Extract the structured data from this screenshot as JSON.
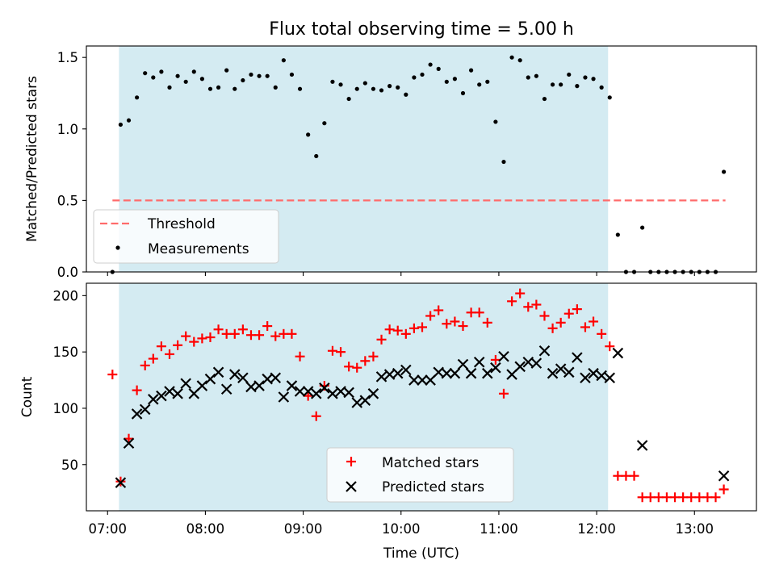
{
  "chart_data": [
    {
      "type": "scatter",
      "title": "Flux total observing time = 5.00 h",
      "ylabel": "Matched/Predicted stars",
      "xlim": [
        "06:47",
        "13:38"
      ],
      "ylim": [
        0,
        1.58
      ],
      "yticks": [
        0,
        0.5,
        1.0,
        1.5
      ],
      "ytick_labels": [
        "0.0",
        "0.5",
        "1.0",
        "1.5"
      ],
      "shaded_span": {
        "start": "07:07",
        "end": "12:07",
        "color": "#add8e6"
      },
      "threshold": {
        "label": "Threshold",
        "value": 0.5,
        "start": "07:03",
        "end": "13:19",
        "color": "#ff6b6b",
        "style": "dashed"
      },
      "legend_position": "lower left",
      "series": [
        {
          "name": "Measurements",
          "marker": "dot",
          "color": "#000000",
          "points": [
            [
              "07:03",
              0.0
            ],
            [
              "07:08",
              1.03
            ],
            [
              "07:13",
              1.06
            ],
            [
              "07:18",
              1.22
            ],
            [
              "07:23",
              1.39
            ],
            [
              "07:28",
              1.36
            ],
            [
              "07:33",
              1.4
            ],
            [
              "07:38",
              1.29
            ],
            [
              "07:43",
              1.37
            ],
            [
              "07:48",
              1.33
            ],
            [
              "07:53",
              1.4
            ],
            [
              "07:58",
              1.35
            ],
            [
              "08:03",
              1.28
            ],
            [
              "08:08",
              1.29
            ],
            [
              "08:13",
              1.41
            ],
            [
              "08:18",
              1.28
            ],
            [
              "08:23",
              1.34
            ],
            [
              "08:28",
              1.38
            ],
            [
              "08:33",
              1.37
            ],
            [
              "08:38",
              1.37
            ],
            [
              "08:43",
              1.29
            ],
            [
              "08:48",
              1.48
            ],
            [
              "08:53",
              1.38
            ],
            [
              "08:58",
              1.28
            ],
            [
              "09:03",
              0.96
            ],
            [
              "09:08",
              0.81
            ],
            [
              "09:13",
              1.04
            ],
            [
              "09:18",
              1.33
            ],
            [
              "09:23",
              1.31
            ],
            [
              "09:28",
              1.21
            ],
            [
              "09:33",
              1.28
            ],
            [
              "09:38",
              1.32
            ],
            [
              "09:43",
              1.28
            ],
            [
              "09:48",
              1.27
            ],
            [
              "09:53",
              1.3
            ],
            [
              "09:58",
              1.29
            ],
            [
              "10:03",
              1.24
            ],
            [
              "10:08",
              1.36
            ],
            [
              "10:13",
              1.38
            ],
            [
              "10:18",
              1.45
            ],
            [
              "10:23",
              1.42
            ],
            [
              "10:28",
              1.33
            ],
            [
              "10:33",
              1.35
            ],
            [
              "10:38",
              1.25
            ],
            [
              "10:43",
              1.41
            ],
            [
              "10:48",
              1.31
            ],
            [
              "10:53",
              1.33
            ],
            [
              "10:58",
              1.05
            ],
            [
              "11:03",
              0.77
            ],
            [
              "11:08",
              1.5
            ],
            [
              "11:13",
              1.48
            ],
            [
              "11:18",
              1.36
            ],
            [
              "11:23",
              1.37
            ],
            [
              "11:28",
              1.21
            ],
            [
              "11:33",
              1.31
            ],
            [
              "11:38",
              1.31
            ],
            [
              "11:43",
              1.38
            ],
            [
              "11:48",
              1.3
            ],
            [
              "11:53",
              1.36
            ],
            [
              "11:58",
              1.35
            ],
            [
              "12:03",
              1.29
            ],
            [
              "12:08",
              1.22
            ],
            [
              "12:13",
              0.26
            ],
            [
              "12:18",
              0.0
            ],
            [
              "12:23",
              0.0
            ],
            [
              "12:28",
              0.31
            ],
            [
              "12:33",
              0.0
            ],
            [
              "12:38",
              0.0
            ],
            [
              "12:43",
              0.0
            ],
            [
              "12:48",
              0.0
            ],
            [
              "12:53",
              0.0
            ],
            [
              "12:58",
              0.0
            ],
            [
              "13:03",
              0.0
            ],
            [
              "13:08",
              0.0
            ],
            [
              "13:13",
              0.0
            ],
            [
              "13:18",
              0.7
            ]
          ]
        }
      ]
    },
    {
      "type": "scatter",
      "xlabel": "Time (UTC)",
      "ylabel": "Count",
      "xlim": [
        "06:47",
        "13:38"
      ],
      "ylim": [
        9,
        211
      ],
      "yticks": [
        50,
        100,
        150,
        200
      ],
      "xtick_labels": [
        "07:00",
        "08:00",
        "09:00",
        "10:00",
        "11:00",
        "12:00",
        "13:00"
      ],
      "shaded_span": {
        "start": "07:07",
        "end": "12:07",
        "color": "#add8e6"
      },
      "legend_position": "lower center",
      "series": [
        {
          "name": "Matched stars",
          "marker": "plus",
          "color": "#ff0000",
          "points": [
            [
              "07:03",
              130
            ],
            [
              "07:08",
              35
            ],
            [
              "07:13",
              73
            ],
            [
              "07:18",
              116
            ],
            [
              "07:23",
              138
            ],
            [
              "07:28",
              144
            ],
            [
              "07:33",
              155
            ],
            [
              "07:38",
              148
            ],
            [
              "07:43",
              156
            ],
            [
              "07:48",
              164
            ],
            [
              "07:53",
              159
            ],
            [
              "07:58",
              162
            ],
            [
              "08:03",
              163
            ],
            [
              "08:08",
              170
            ],
            [
              "08:13",
              166
            ],
            [
              "08:18",
              166
            ],
            [
              "08:23",
              170
            ],
            [
              "08:28",
              165
            ],
            [
              "08:33",
              165
            ],
            [
              "08:38",
              173
            ],
            [
              "08:43",
              164
            ],
            [
              "08:48",
              166
            ],
            [
              "08:53",
              166
            ],
            [
              "08:58",
              146
            ],
            [
              "09:03",
              111
            ],
            [
              "09:08",
              93
            ],
            [
              "09:13",
              120
            ],
            [
              "09:18",
              151
            ],
            [
              "09:23",
              150
            ],
            [
              "09:28",
              137
            ],
            [
              "09:33",
              136
            ],
            [
              "09:38",
              142
            ],
            [
              "09:43",
              146
            ],
            [
              "09:48",
              161
            ],
            [
              "09:53",
              170
            ],
            [
              "09:58",
              169
            ],
            [
              "10:03",
              166
            ],
            [
              "10:08",
              171
            ],
            [
              "10:13",
              172
            ],
            [
              "10:18",
              182
            ],
            [
              "10:23",
              187
            ],
            [
              "10:28",
              175
            ],
            [
              "10:33",
              177
            ],
            [
              "10:38",
              173
            ],
            [
              "10:43",
              185
            ],
            [
              "10:48",
              185
            ],
            [
              "10:53",
              176
            ],
            [
              "10:58",
              143
            ],
            [
              "11:03",
              113
            ],
            [
              "11:08",
              195
            ],
            [
              "11:13",
              202
            ],
            [
              "11:18",
              190
            ],
            [
              "11:23",
              192
            ],
            [
              "11:28",
              182
            ],
            [
              "11:33",
              171
            ],
            [
              "11:38",
              176
            ],
            [
              "11:43",
              184
            ],
            [
              "11:48",
              188
            ],
            [
              "11:53",
              172
            ],
            [
              "11:58",
              177
            ],
            [
              "12:03",
              166
            ],
            [
              "12:08",
              155
            ],
            [
              "12:13",
              40
            ],
            [
              "12:18",
              40
            ],
            [
              "12:23",
              40
            ],
            [
              "12:28",
              21
            ],
            [
              "12:33",
              21
            ],
            [
              "12:38",
              21
            ],
            [
              "12:43",
              21
            ],
            [
              "12:48",
              21
            ],
            [
              "12:53",
              21
            ],
            [
              "12:58",
              21
            ],
            [
              "13:03",
              21
            ],
            [
              "13:08",
              21
            ],
            [
              "13:13",
              21
            ],
            [
              "13:18",
              28
            ]
          ]
        },
        {
          "name": "Predicted stars",
          "marker": "x",
          "color": "#000000",
          "points": [
            [
              "07:08",
              34
            ],
            [
              "07:13",
              69
            ],
            [
              "07:18",
              95
            ],
            [
              "07:23",
              99
            ],
            [
              "07:28",
              108
            ],
            [
              "07:33",
              111
            ],
            [
              "07:38",
              115
            ],
            [
              "07:43",
              113
            ],
            [
              "07:48",
              122
            ],
            [
              "07:53",
              113
            ],
            [
              "07:58",
              120
            ],
            [
              "08:03",
              126
            ],
            [
              "08:08",
              132
            ],
            [
              "08:13",
              117
            ],
            [
              "08:18",
              130
            ],
            [
              "08:23",
              127
            ],
            [
              "08:28",
              119
            ],
            [
              "08:33",
              120
            ],
            [
              "08:38",
              126
            ],
            [
              "08:43",
              127
            ],
            [
              "08:48",
              110
            ],
            [
              "08:53",
              120
            ],
            [
              "08:58",
              115
            ],
            [
              "09:03",
              115
            ],
            [
              "09:08",
              113
            ],
            [
              "09:13",
              118
            ],
            [
              "09:18",
              113
            ],
            [
              "09:23",
              115
            ],
            [
              "09:28",
              114
            ],
            [
              "09:33",
              105
            ],
            [
              "09:38",
              107
            ],
            [
              "09:43",
              113
            ],
            [
              "09:48",
              128
            ],
            [
              "09:53",
              130
            ],
            [
              "09:58",
              131
            ],
            [
              "10:03",
              134
            ],
            [
              "10:08",
              125
            ],
            [
              "10:13",
              125
            ],
            [
              "10:18",
              125
            ],
            [
              "10:23",
              132
            ],
            [
              "10:28",
              131
            ],
            [
              "10:33",
              131
            ],
            [
              "10:38",
              139
            ],
            [
              "10:43",
              131
            ],
            [
              "10:48",
              141
            ],
            [
              "10:53",
              131
            ],
            [
              "10:58",
              136
            ],
            [
              "11:03",
              146
            ],
            [
              "11:08",
              130
            ],
            [
              "11:13",
              137
            ],
            [
              "11:18",
              141
            ],
            [
              "11:23",
              140
            ],
            [
              "11:28",
              151
            ],
            [
              "11:33",
              131
            ],
            [
              "11:38",
              135
            ],
            [
              "11:43",
              132
            ],
            [
              "11:48",
              145
            ],
            [
              "11:53",
              127
            ],
            [
              "11:58",
              131
            ],
            [
              "12:03",
              129
            ],
            [
              "12:08",
              127
            ],
            [
              "12:13",
              149
            ],
            [
              "12:28",
              67
            ],
            [
              "13:18",
              40
            ]
          ]
        }
      ]
    }
  ]
}
